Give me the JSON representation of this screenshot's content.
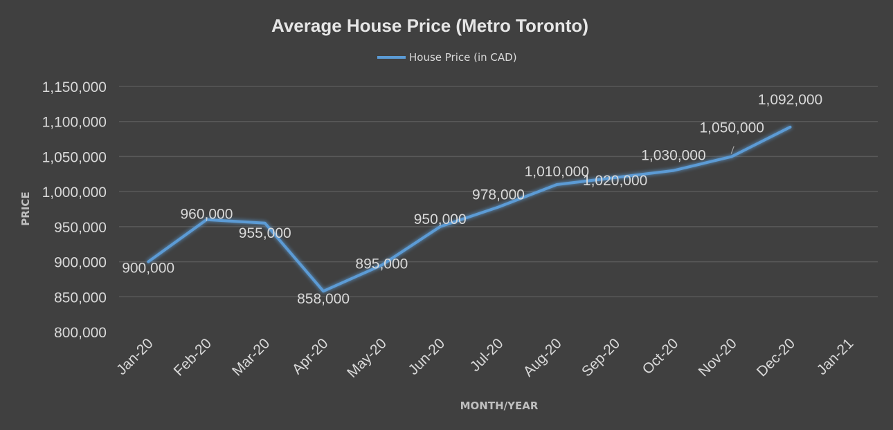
{
  "chart_data": {
    "type": "line",
    "title": "Average House Price (Metro Toronto)",
    "xlabel": "MONTH/YEAR",
    "ylabel": "PRICE",
    "categories": [
      "Jan-20",
      "Feb-20",
      "Mar-20",
      "Apr-20",
      "May-20",
      "Jun-20",
      "Jul-20",
      "Aug-20",
      "Sep-20",
      "Oct-20",
      "Nov-20",
      "Dec-20",
      "Jan-21"
    ],
    "series": [
      {
        "name": "House Price (in CAD)",
        "values": [
          900000,
          960000,
          955000,
          858000,
          895000,
          950000,
          978000,
          1010000,
          1020000,
          1030000,
          1050000,
          1092000,
          null
        ],
        "data_labels": [
          "900,000",
          "960,000",
          "955,000",
          "858,000",
          "895,000",
          "950,000",
          "978,000",
          "1,010,000",
          "1,020,000",
          "1,030,000",
          "1,050,000",
          "1,092,000",
          null
        ]
      }
    ],
    "ylim": [
      800000,
      1150000
    ],
    "yticks": [
      800000,
      850000,
      900000,
      950000,
      1000000,
      1050000,
      1100000,
      1150000
    ],
    "ytick_labels": [
      "800,000",
      "850,000",
      "900,000",
      "950,000",
      "1,000,000",
      "1,050,000",
      "1,100,000",
      "1,150,000"
    ],
    "grid": true,
    "legend_position": "top-center",
    "colors": {
      "background": "#404040",
      "line": "#5b9bd5",
      "gridline": "#595959",
      "text": "#d9d9d9"
    }
  }
}
